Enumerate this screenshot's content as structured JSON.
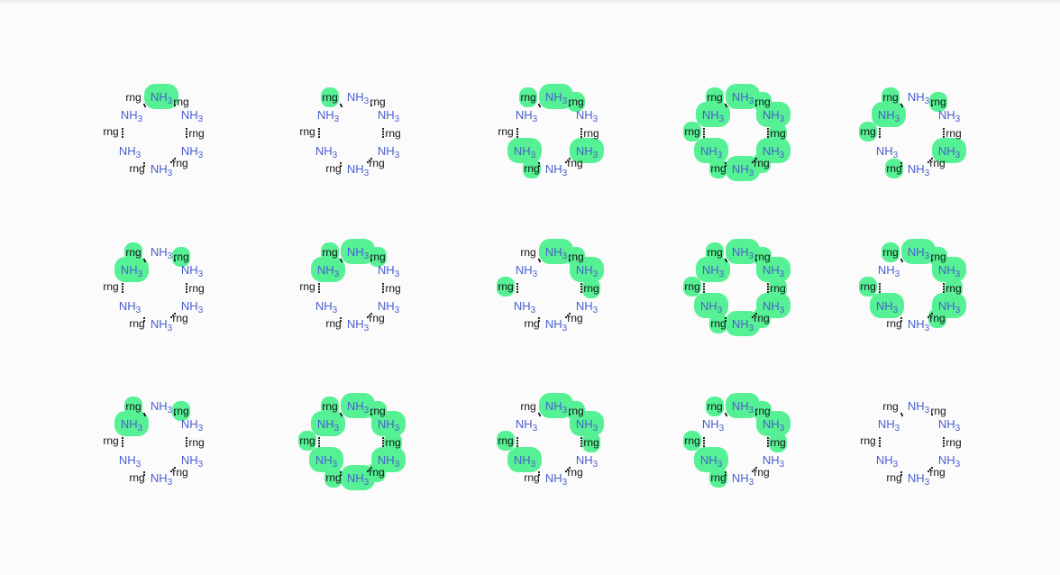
{
  "labels": {
    "amine": "NH",
    "amine_subscript": "3",
    "ring": "rng"
  },
  "colors": {
    "background": "#fbfbfb",
    "highlight": "#56f195",
    "amine_text": "#4a5fd0",
    "ring_text": "#111111"
  },
  "molecules": [
    {
      "highlighted": [
        1
      ]
    },
    {
      "highlighted": [
        0
      ]
    },
    {
      "highlighted": [
        0,
        1,
        2,
        7,
        8,
        9
      ]
    },
    {
      "highlighted": [
        0,
        1,
        2,
        3,
        4,
        5,
        6,
        7,
        8,
        9,
        10,
        11
      ]
    },
    {
      "highlighted": [
        0,
        2,
        3,
        5,
        8,
        9
      ]
    },
    {
      "highlighted": [
        0,
        2,
        3
      ]
    },
    {
      "highlighted": [
        0,
        1,
        2,
        3
      ]
    },
    {
      "highlighted": [
        1,
        2,
        4,
        5,
        6
      ]
    },
    {
      "highlighted": [
        0,
        1,
        2,
        3,
        4,
        5,
        6,
        7,
        8,
        9,
        10,
        11
      ]
    },
    {
      "highlighted": [
        0,
        1,
        2,
        4,
        5,
        6,
        7,
        8,
        11
      ]
    },
    {
      "highlighted": [
        0,
        2,
        3
      ]
    },
    {
      "highlighted": [
        0,
        1,
        2,
        3,
        4,
        5,
        6,
        7,
        8,
        9,
        10,
        11
      ]
    },
    {
      "highlighted": [
        1,
        2,
        4,
        5,
        6,
        7
      ]
    },
    {
      "highlighted": [
        0,
        1,
        2,
        4,
        5,
        6,
        7,
        9
      ]
    },
    {
      "highlighted": []
    }
  ]
}
